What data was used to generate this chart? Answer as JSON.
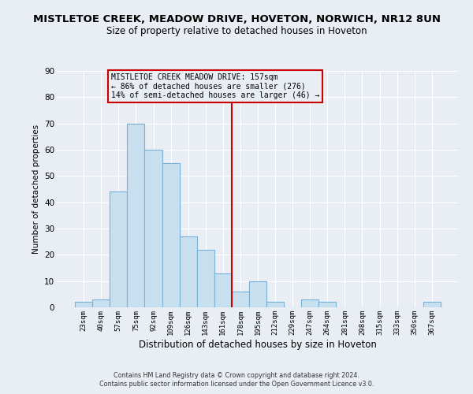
{
  "title": "MISTLETOE CREEK, MEADOW DRIVE, HOVETON, NORWICH, NR12 8UN",
  "subtitle": "Size of property relative to detached houses in Hoveton",
  "xlabel": "Distribution of detached houses by size in Hoveton",
  "ylabel": "Number of detached properties",
  "bar_labels": [
    "23sqm",
    "40sqm",
    "57sqm",
    "75sqm",
    "92sqm",
    "109sqm",
    "126sqm",
    "143sqm",
    "161sqm",
    "178sqm",
    "195sqm",
    "212sqm",
    "229sqm",
    "247sqm",
    "264sqm",
    "281sqm",
    "298sqm",
    "315sqm",
    "333sqm",
    "350sqm",
    "367sqm"
  ],
  "bar_values": [
    2,
    3,
    44,
    70,
    60,
    55,
    27,
    22,
    13,
    6,
    10,
    2,
    0,
    3,
    2,
    0,
    0,
    0,
    0,
    0,
    2
  ],
  "bar_color": "#c8dff0",
  "bar_edge_color": "#7ab0d4",
  "vline_x": 8.5,
  "vline_color": "#cc0000",
  "ylim": [
    0,
    90
  ],
  "yticks": [
    0,
    10,
    20,
    30,
    40,
    50,
    60,
    70,
    80,
    90
  ],
  "annotation_line1": "MISTLETOE CREEK MEADOW DRIVE: 157sqm",
  "annotation_line2": "← 86% of detached houses are smaller (276)",
  "annotation_line3": "14% of semi-detached houses are larger (46) →",
  "box_color": "#cc0000",
  "footer1": "Contains HM Land Registry data © Crown copyright and database right 2024.",
  "footer2": "Contains public sector information licensed under the Open Government Licence v3.0.",
  "background_color": "#e8eef4",
  "grid_color": "#ffffff",
  "title_fontsize": 9.5,
  "subtitle_fontsize": 8.5
}
